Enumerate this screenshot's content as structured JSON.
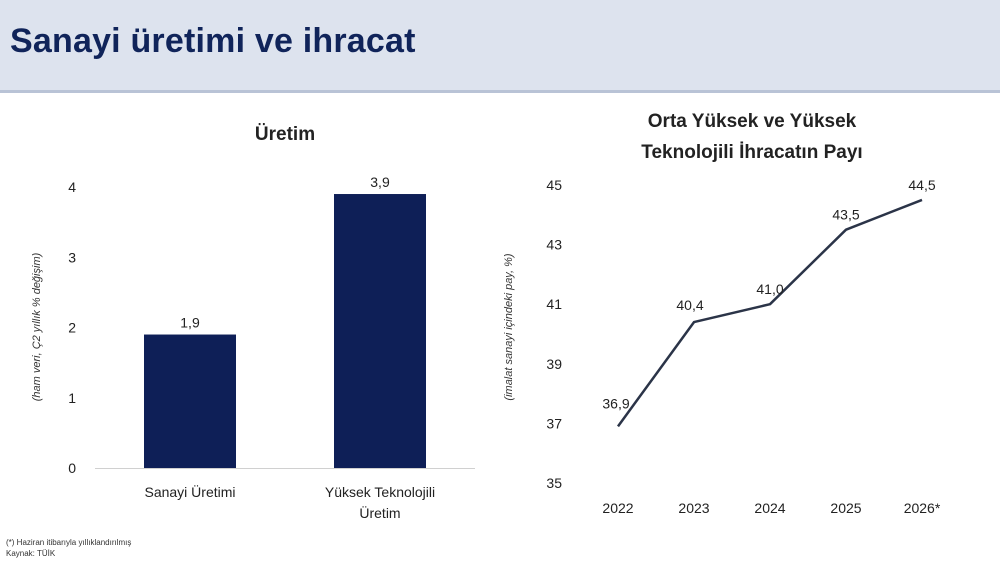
{
  "header": {
    "title": "Sanayi üretimi ve ihracat"
  },
  "footnotes": {
    "note": "(*) Haziran itibarıyla yıllıklandırılmış",
    "source": "Kaynak: TÜİK"
  },
  "colors": {
    "accent": "#0e1f57",
    "header_bg": "#dde3ee",
    "title": "#10245a"
  },
  "chart_data": [
    {
      "type": "bar",
      "title": "Üretim",
      "ylabel": "(ham veri, Ç2 yıllık % değişim)",
      "xlabel": "",
      "categories": [
        [
          "Sanayi Üretimi"
        ],
        [
          "Yüksek Teknolojili",
          "Üretim"
        ]
      ],
      "values": [
        1.9,
        3.9
      ],
      "value_labels": [
        "1,9",
        "3,9"
      ],
      "ylim": [
        0,
        4
      ],
      "yticks": [
        0,
        1,
        2,
        3,
        4
      ],
      "ytick_labels": [
        "0",
        "1",
        "2",
        "3",
        "4"
      ],
      "grid": false,
      "color": "#0e1f57"
    },
    {
      "type": "line",
      "title": [
        "Orta Yüksek ve Yüksek",
        "Teknolojili İhracatın Payı"
      ],
      "ylabel": "(imalat sanayi içindeki pay, %)",
      "xlabel": "",
      "x": [
        "2022",
        "2023",
        "2024",
        "2025",
        "2026*"
      ],
      "values": [
        36.9,
        40.4,
        41.0,
        43.5,
        44.5
      ],
      "value_labels": [
        "36,9",
        "40,4",
        "41,0",
        "43,5",
        "44,5"
      ],
      "ylim": [
        35,
        45
      ],
      "yticks": [
        35,
        37,
        39,
        41,
        43,
        45
      ],
      "ytick_labels": [
        "35",
        "37",
        "39",
        "41",
        "43",
        "45"
      ],
      "grid": false,
      "color": "#2b3448"
    }
  ]
}
